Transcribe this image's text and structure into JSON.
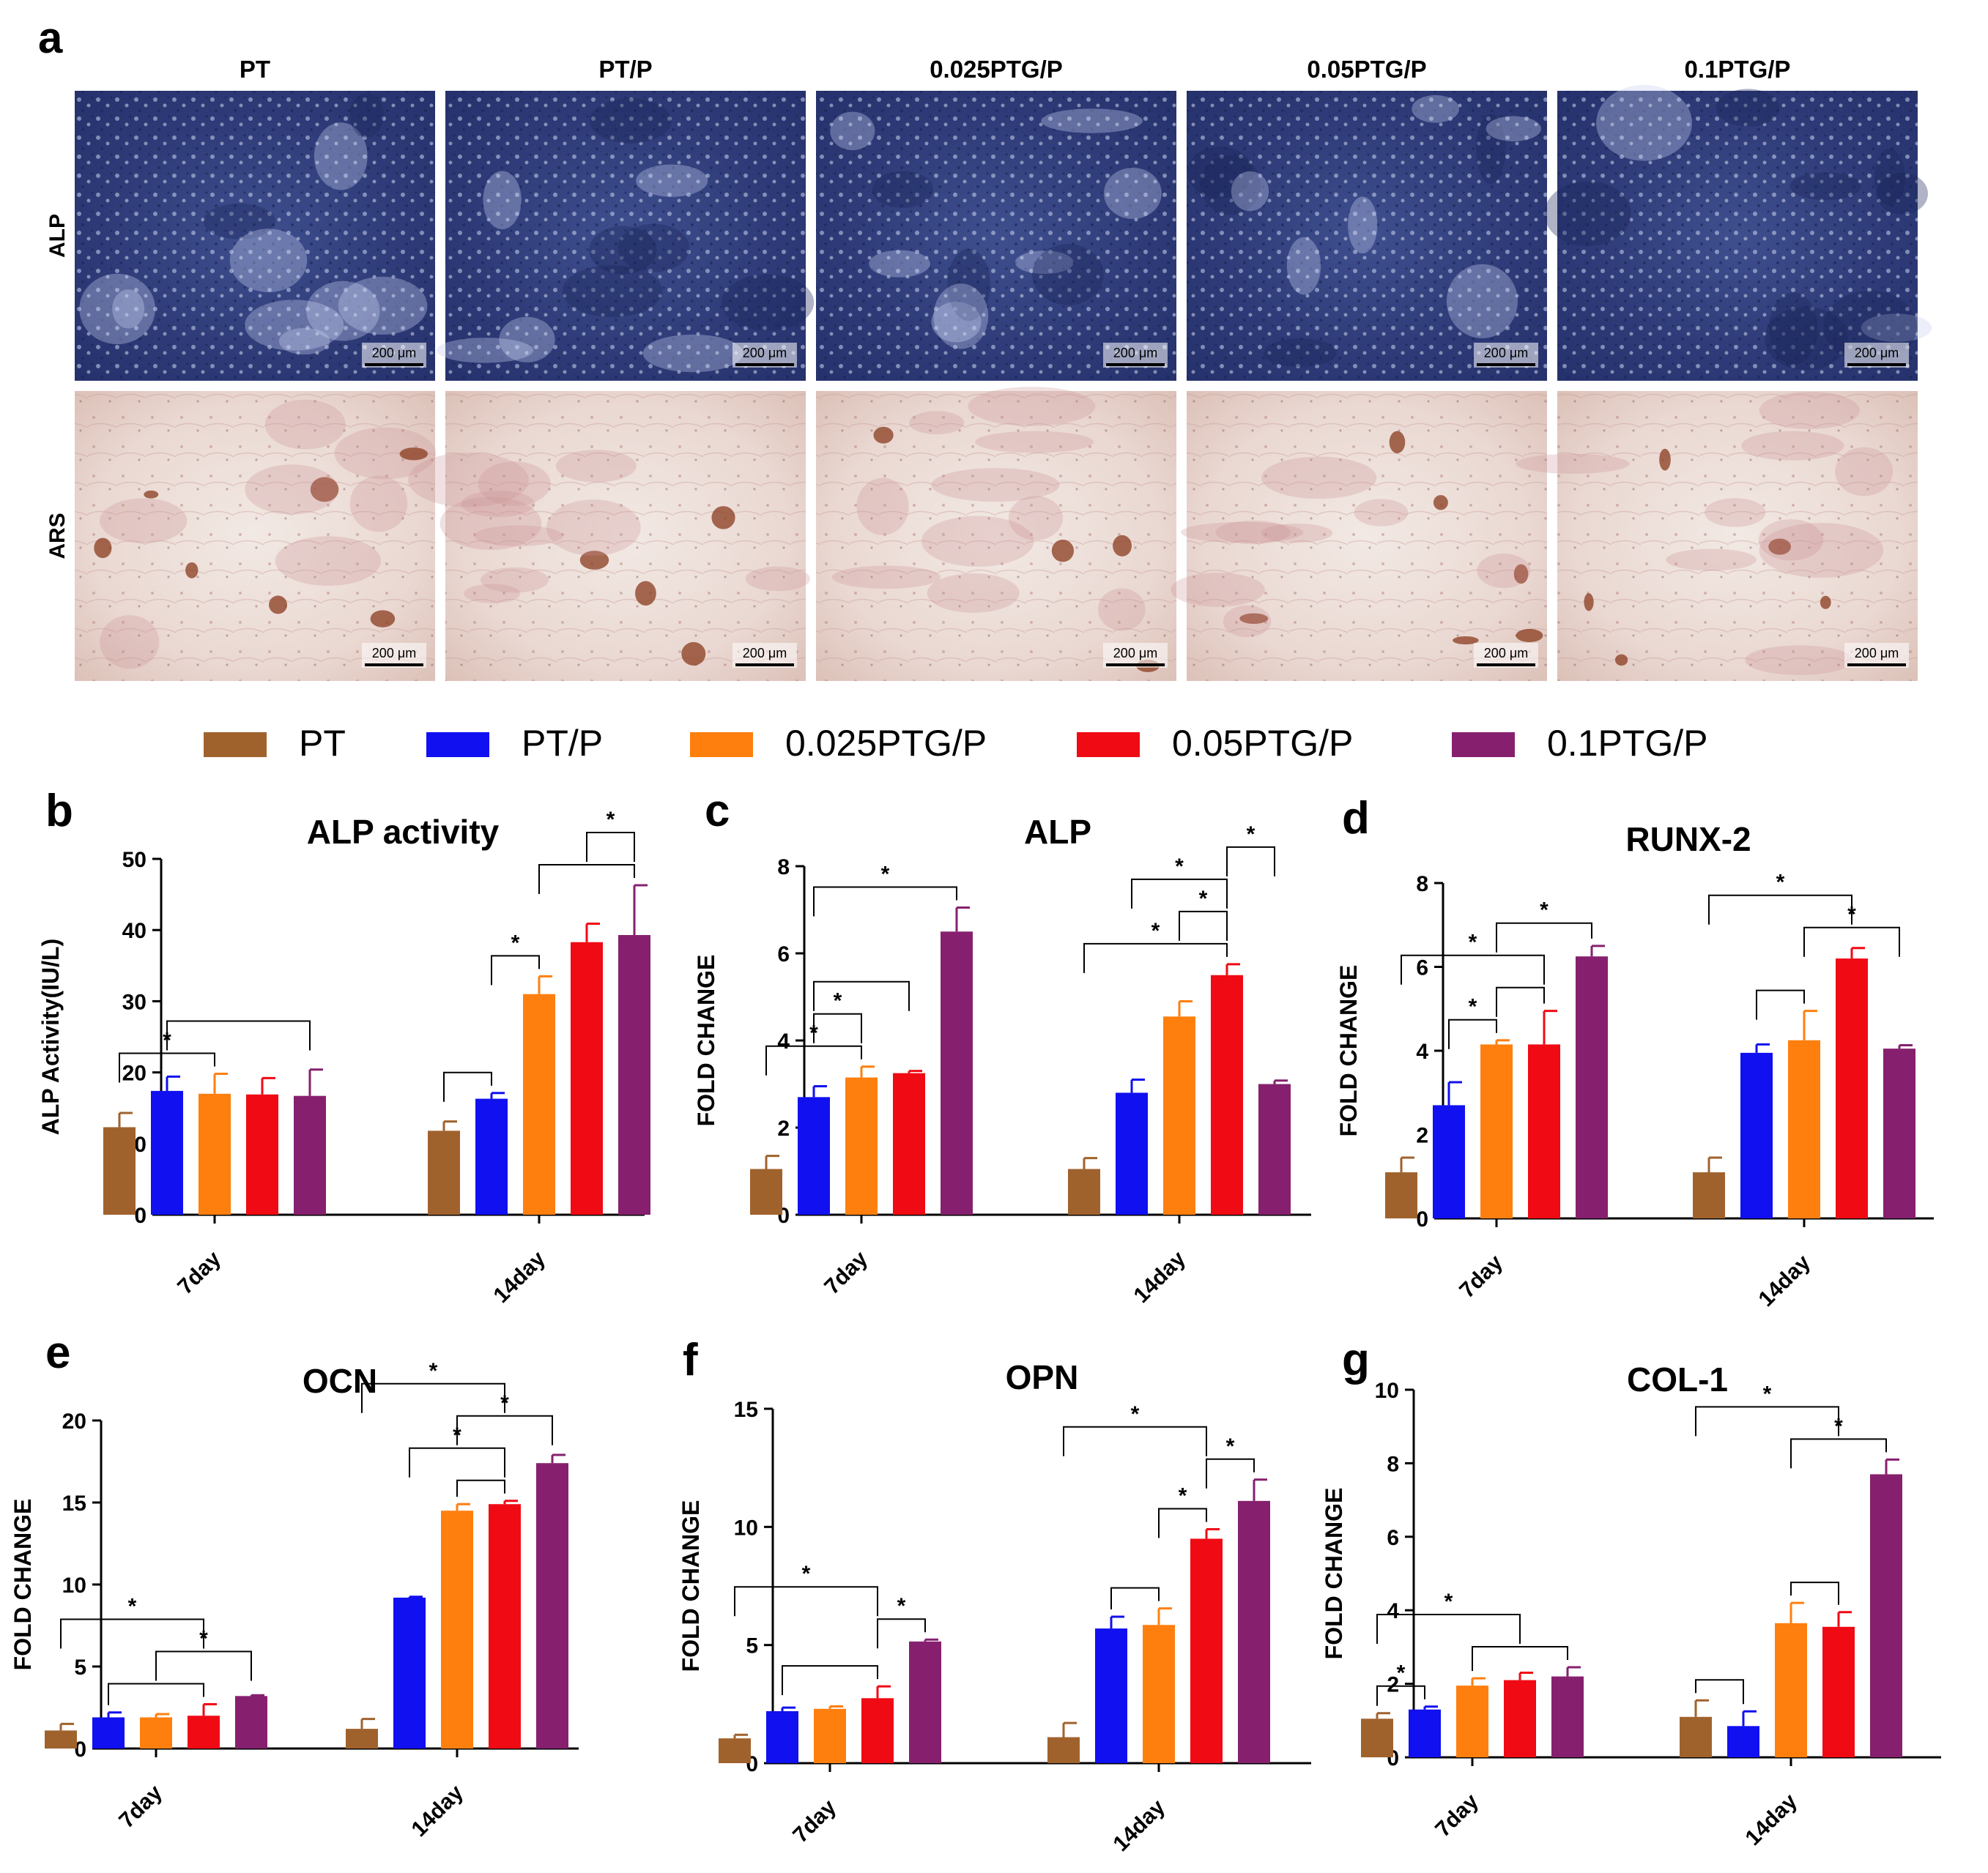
{
  "panel_letters": {
    "a": "a",
    "b": "b",
    "c": "c",
    "d": "d",
    "e": "e",
    "f": "f",
    "g": "g"
  },
  "micrographs": {
    "columns": [
      "PT",
      "PT/P",
      "0.025PTG/P",
      "0.05PTG/P",
      "0.1PTG/P"
    ],
    "rows": [
      "ALP",
      "ARS"
    ],
    "scale_bar_text": "200 μm"
  },
  "legend": [
    {
      "name": "PT",
      "color": "#a0622d"
    },
    {
      "name": "PT/P",
      "color": "#1010f0"
    },
    {
      "name": "0.025PTG/P",
      "color": "#ff7f0e"
    },
    {
      "name": "0.05PTG/P",
      "color": "#f00a14"
    },
    {
      "name": "0.1PTG/P",
      "color": "#86206e"
    }
  ],
  "chart_data": [
    {
      "panel": "b",
      "type": "bar",
      "title": "ALP activity",
      "ylabel": "ALP  Activity(IU/L)",
      "ylim": [
        0,
        50
      ],
      "yticks": [
        0,
        10,
        20,
        30,
        40,
        50
      ],
      "categories": [
        "7day",
        "14day"
      ],
      "series": [
        {
          "name": "PT",
          "values": [
            12.3,
            11.8
          ],
          "errors": [
            2.0,
            1.3
          ]
        },
        {
          "name": "PT/P",
          "values": [
            17.4,
            16.3
          ],
          "errors": [
            2.0,
            0.8
          ]
        },
        {
          "name": "0.025PTG/P",
          "values": [
            17.0,
            31.0
          ],
          "errors": [
            2.8,
            2.5
          ]
        },
        {
          "name": "0.05PTG/P",
          "values": [
            16.9,
            38.3
          ],
          "errors": [
            2.3,
            2.6
          ]
        },
        {
          "name": "0.1PTG/P",
          "values": [
            16.7,
            39.3
          ],
          "errors": [
            3.7,
            7.0
          ]
        }
      ],
      "significance": [
        {
          "a": [
            0,
            0
          ],
          "b": [
            0,
            2
          ],
          "label": "*"
        },
        {
          "a": [
            0,
            1
          ],
          "b": [
            0,
            4
          ],
          "label": ""
        },
        {
          "a": [
            1,
            0
          ],
          "b": [
            1,
            1
          ],
          "label": ""
        },
        {
          "a": [
            1,
            1
          ],
          "b": [
            1,
            2
          ],
          "label": "*"
        },
        {
          "a": [
            1,
            2
          ],
          "b": [
            1,
            4
          ],
          "label": ""
        },
        {
          "a": [
            1,
            3
          ],
          "b": [
            1,
            4
          ],
          "label": "*"
        }
      ]
    },
    {
      "panel": "c",
      "type": "bar",
      "title": "ALP",
      "ylabel": "FOLD CHANGE",
      "ylim": [
        0,
        8
      ],
      "yticks": [
        0,
        2,
        4,
        6,
        8
      ],
      "categories": [
        "7day",
        "14day"
      ],
      "series": [
        {
          "name": "PT",
          "values": [
            1.05,
            1.05
          ],
          "errors": [
            0.3,
            0.25
          ]
        },
        {
          "name": "PT/P",
          "values": [
            2.7,
            2.8
          ],
          "errors": [
            0.25,
            0.3
          ]
        },
        {
          "name": "0.025PTG/P",
          "values": [
            3.15,
            4.55
          ],
          "errors": [
            0.25,
            0.35
          ]
        },
        {
          "name": "0.05PTG/P",
          "values": [
            3.25,
            5.5
          ],
          "errors": [
            0.05,
            0.25
          ]
        },
        {
          "name": "0.1PTG/P",
          "values": [
            6.5,
            3.0
          ],
          "errors": [
            0.55,
            0.08
          ]
        }
      ],
      "significance": [
        {
          "a": [
            0,
            0
          ],
          "b": [
            0,
            2
          ],
          "label": "*"
        },
        {
          "a": [
            0,
            1
          ],
          "b": [
            0,
            2
          ],
          "label": "*"
        },
        {
          "a": [
            0,
            1
          ],
          "b": [
            0,
            3
          ],
          "label": ""
        },
        {
          "a": [
            0,
            1
          ],
          "b": [
            0,
            4
          ],
          "label": "*"
        },
        {
          "a": [
            1,
            0
          ],
          "b": [
            1,
            3
          ],
          "label": "*"
        },
        {
          "a": [
            1,
            2
          ],
          "b": [
            1,
            3
          ],
          "label": "*"
        },
        {
          "a": [
            1,
            1
          ],
          "b": [
            1,
            3
          ],
          "label": "*"
        },
        {
          "a": [
            1,
            3
          ],
          "b": [
            1,
            4
          ],
          "label": "*"
        }
      ]
    },
    {
      "panel": "d",
      "type": "bar",
      "title": "RUNX-2",
      "ylabel": "FOLD CHANGE",
      "ylim": [
        0,
        8
      ],
      "yticks": [
        0,
        2,
        4,
        6,
        8
      ],
      "categories": [
        "7day",
        "14day"
      ],
      "series": [
        {
          "name": "PT",
          "values": [
            1.1,
            1.1
          ],
          "errors": [
            0.35,
            0.35
          ]
        },
        {
          "name": "PT/P",
          "values": [
            2.7,
            3.95
          ],
          "errors": [
            0.55,
            0.2
          ]
        },
        {
          "name": "0.025PTG/P",
          "values": [
            4.15,
            4.25
          ],
          "errors": [
            0.1,
            0.7
          ]
        },
        {
          "name": "0.05PTG/P",
          "values": [
            4.15,
            6.2
          ],
          "errors": [
            0.8,
            0.25
          ]
        },
        {
          "name": "0.1PTG/P",
          "values": [
            6.25,
            4.05
          ],
          "errors": [
            0.25,
            0.08
          ]
        }
      ],
      "significance": [
        {
          "a": [
            0,
            1
          ],
          "b": [
            0,
            2
          ],
          "label": "*"
        },
        {
          "a": [
            0,
            2
          ],
          "b": [
            0,
            3
          ],
          "label": ""
        },
        {
          "a": [
            0,
            0
          ],
          "b": [
            0,
            3
          ],
          "label": "*"
        },
        {
          "a": [
            0,
            2
          ],
          "b": [
            0,
            4
          ],
          "label": "*"
        },
        {
          "a": [
            1,
            1
          ],
          "b": [
            1,
            2
          ],
          "label": ""
        },
        {
          "a": [
            1,
            2
          ],
          "b": [
            1,
            4
          ],
          "label": "*"
        },
        {
          "a": [
            1,
            0
          ],
          "b": [
            1,
            3
          ],
          "label": "*"
        }
      ]
    },
    {
      "panel": "e",
      "type": "bar",
      "title": "OCN",
      "ylabel": "FOLD CHANGE",
      "ylim": [
        0,
        20
      ],
      "yticks": [
        0,
        5,
        10,
        15,
        20
      ],
      "categories": [
        "7day",
        "14day"
      ],
      "series": [
        {
          "name": "PT",
          "values": [
            1.1,
            1.2
          ],
          "errors": [
            0.4,
            0.6
          ]
        },
        {
          "name": "PT/P",
          "values": [
            1.9,
            9.2
          ],
          "errors": [
            0.3,
            0.05
          ]
        },
        {
          "name": "0.025PTG/P",
          "values": [
            1.9,
            14.5
          ],
          "errors": [
            0.2,
            0.4
          ]
        },
        {
          "name": "0.05PTG/P",
          "values": [
            2.0,
            14.9
          ],
          "errors": [
            0.7,
            0.2
          ]
        },
        {
          "name": "0.1PTG/P",
          "values": [
            3.2,
            17.4
          ],
          "errors": [
            0.05,
            0.5
          ]
        }
      ],
      "significance": [
        {
          "a": [
            0,
            1
          ],
          "b": [
            0,
            3
          ],
          "label": ""
        },
        {
          "a": [
            0,
            2
          ],
          "b": [
            0,
            4
          ],
          "label": "*"
        },
        {
          "a": [
            0,
            0
          ],
          "b": [
            0,
            3
          ],
          "label": "*"
        },
        {
          "a": [
            1,
            2
          ],
          "b": [
            1,
            3
          ],
          "label": ""
        },
        {
          "a": [
            1,
            1
          ],
          "b": [
            1,
            3
          ],
          "label": "*"
        },
        {
          "a": [
            1,
            2
          ],
          "b": [
            1,
            4
          ],
          "label": "*"
        },
        {
          "a": [
            1,
            0
          ],
          "b": [
            1,
            3
          ],
          "label": "*"
        }
      ]
    },
    {
      "panel": "f",
      "type": "bar",
      "title": "OPN",
      "ylabel": "FOLD CHANGE",
      "ylim": [
        0,
        15
      ],
      "yticks": [
        0,
        5,
        10,
        15
      ],
      "categories": [
        "7day",
        "14day"
      ],
      "series": [
        {
          "name": "PT",
          "values": [
            1.05,
            1.1
          ],
          "errors": [
            0.15,
            0.6
          ]
        },
        {
          "name": "PT/P",
          "values": [
            2.2,
            5.7
          ],
          "errors": [
            0.15,
            0.5
          ]
        },
        {
          "name": "0.025PTG/P",
          "values": [
            2.3,
            5.85
          ],
          "errors": [
            0.1,
            0.7
          ]
        },
        {
          "name": "0.05PTG/P",
          "values": [
            2.75,
            9.5
          ],
          "errors": [
            0.5,
            0.4
          ]
        },
        {
          "name": "0.1PTG/P",
          "values": [
            5.15,
            11.1
          ],
          "errors": [
            0.08,
            0.9
          ]
        }
      ],
      "significance": [
        {
          "a": [
            0,
            1
          ],
          "b": [
            0,
            3
          ],
          "label": ""
        },
        {
          "a": [
            0,
            3
          ],
          "b": [
            0,
            4
          ],
          "label": "*"
        },
        {
          "a": [
            0,
            0
          ],
          "b": [
            0,
            3
          ],
          "label": "*"
        },
        {
          "a": [
            1,
            1
          ],
          "b": [
            1,
            2
          ],
          "label": ""
        },
        {
          "a": [
            1,
            2
          ],
          "b": [
            1,
            3
          ],
          "label": "*"
        },
        {
          "a": [
            1,
            3
          ],
          "b": [
            1,
            4
          ],
          "label": "*"
        },
        {
          "a": [
            1,
            0
          ],
          "b": [
            1,
            3
          ],
          "label": "*"
        }
      ]
    },
    {
      "panel": "g",
      "type": "bar",
      "title": "COL-1",
      "ylabel": "FOLD CHANGE",
      "ylim": [
        0,
        10
      ],
      "yticks": [
        0,
        2,
        4,
        6,
        8,
        10
      ],
      "categories": [
        "7day",
        "14day"
      ],
      "series": [
        {
          "name": "PT",
          "values": [
            1.05,
            1.1
          ],
          "errors": [
            0.15,
            0.45
          ]
        },
        {
          "name": "PT/P",
          "values": [
            1.3,
            0.85
          ],
          "errors": [
            0.08,
            0.4
          ]
        },
        {
          "name": "0.025PTG/P",
          "values": [
            1.95,
            3.65
          ],
          "errors": [
            0.2,
            0.55
          ]
        },
        {
          "name": "0.05PTG/P",
          "values": [
            2.1,
            3.55
          ],
          "errors": [
            0.2,
            0.4
          ]
        },
        {
          "name": "0.1PTG/P",
          "values": [
            2.2,
            7.7
          ],
          "errors": [
            0.25,
            0.4
          ]
        }
      ],
      "significance": [
        {
          "a": [
            0,
            0
          ],
          "b": [
            0,
            1
          ],
          "label": "*"
        },
        {
          "a": [
            0,
            2
          ],
          "b": [
            0,
            4
          ],
          "label": ""
        },
        {
          "a": [
            0,
            0
          ],
          "b": [
            0,
            3
          ],
          "label": "*"
        },
        {
          "a": [
            1,
            0
          ],
          "b": [
            1,
            1
          ],
          "label": ""
        },
        {
          "a": [
            1,
            2
          ],
          "b": [
            1,
            3
          ],
          "label": ""
        },
        {
          "a": [
            1,
            2
          ],
          "b": [
            1,
            4
          ],
          "label": "*"
        },
        {
          "a": [
            1,
            0
          ],
          "b": [
            1,
            3
          ],
          "label": "*"
        }
      ]
    }
  ]
}
